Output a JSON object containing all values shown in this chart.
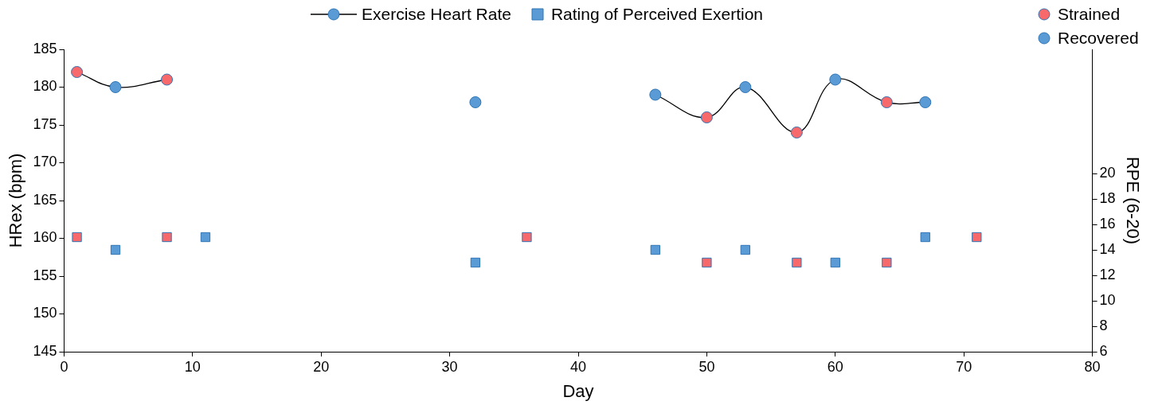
{
  "chart_data": {
    "type": "line",
    "xlabel": "Day",
    "ylabel": "HRex (bpm)",
    "y2label": "RPE (6-20)",
    "xlim": [
      0,
      80
    ],
    "xticks": [
      0,
      10,
      20,
      30,
      40,
      50,
      60,
      70,
      80
    ],
    "ylim": [
      145,
      185
    ],
    "yticks": [
      145,
      150,
      155,
      160,
      165,
      170,
      175,
      180,
      185
    ],
    "y2lim": [
      6,
      29.75
    ],
    "y2ticks": [
      6,
      8,
      10,
      12,
      14,
      16,
      18,
      20
    ],
    "grid": false,
    "legend": "top",
    "marker": "circle",
    "line_style": "solid",
    "series": [
      {
        "name": "Exercise Heart Rate",
        "color": "#000000",
        "x": [
          1,
          4,
          8
        ],
        "values": [
          182,
          180,
          181
        ],
        "colors": [
          "#f8696b",
          "#5b9bd5",
          "#f8696b"
        ]
      },
      {
        "color": "#000000",
        "x": [
          32
        ],
        "values": [
          178
        ],
        "colors": [
          "#5b9bd5"
        ]
      },
      {
        "color": "#000000",
        "x": [
          46,
          50,
          53,
          57,
          60,
          64,
          67
        ],
        "values": [
          179,
          176,
          180,
          174,
          181,
          178,
          178
        ],
        "colors": [
          "#5b9bd5",
          "#f8696b",
          "#5b9bd5",
          "#f8696b",
          "#5b9bd5",
          "#f8696b",
          "#5b9bd5"
        ]
      },
      {
        "name": "Rating of Perceived Exertion",
        "type": "scatter",
        "marker": "square",
        "axis": "y2",
        "color": "#5b9bd5",
        "x": [
          1,
          4,
          8,
          11,
          32,
          36,
          46,
          50,
          53,
          57,
          60,
          64,
          67,
          71
        ],
        "values": [
          15,
          14,
          15,
          15,
          13,
          15,
          14,
          13,
          14,
          13,
          13,
          13,
          15,
          15
        ],
        "colors": [
          "#f8696b",
          "#5b9bd5",
          "#f8696b",
          "#5b9bd5",
          "#5b9bd5",
          "#f8696b",
          "#5b9bd5",
          "#f8696b",
          "#5b9bd5",
          "#f8696b",
          "#5b9bd5",
          "#f8696b",
          "#5b9bd5",
          "#f8696b"
        ]
      },
      {
        "name": "Strained",
        "type": "scatter",
        "color": "#f8696b"
      },
      {
        "name": "Recovered",
        "type": "scatter",
        "color": "#5b9bd5"
      }
    ]
  }
}
